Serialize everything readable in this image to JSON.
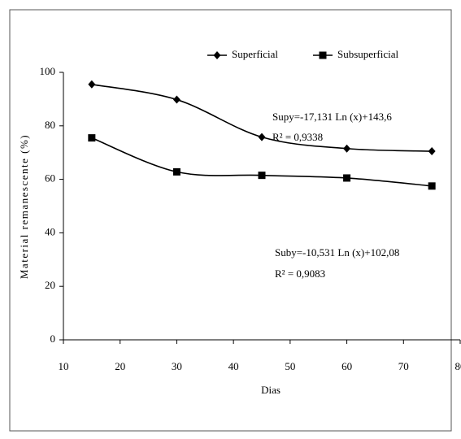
{
  "chart_data": {
    "type": "line",
    "x": [
      15,
      30,
      45,
      60,
      75
    ],
    "series": [
      {
        "name": "Superficial",
        "color": "#000000",
        "marker": "diamond",
        "values": [
          95.5,
          89.8,
          75.8,
          71.5,
          70.5
        ]
      },
      {
        "name": "Subsuperficial",
        "color": "#000000",
        "marker": "square",
        "values": [
          75.5,
          62.8,
          61.5,
          60.5,
          57.5
        ]
      }
    ],
    "xlabel": "Dias",
    "ylabel": "Material remanescente (%)",
    "xlim": [
      10,
      80
    ],
    "xticks": [
      10,
      20,
      30,
      40,
      50,
      60,
      70,
      80
    ],
    "ylim": [
      0,
      100
    ],
    "yticks": [
      0,
      20,
      40,
      60,
      80,
      100
    ],
    "legend": "top",
    "smooth": true,
    "annotations": [
      "Supy=-17,131 Ln (x)+143,6",
      "R² = 0,9338",
      "Suby=-10,531 Ln (x)+102,08",
      "R² = 0,9083"
    ]
  }
}
